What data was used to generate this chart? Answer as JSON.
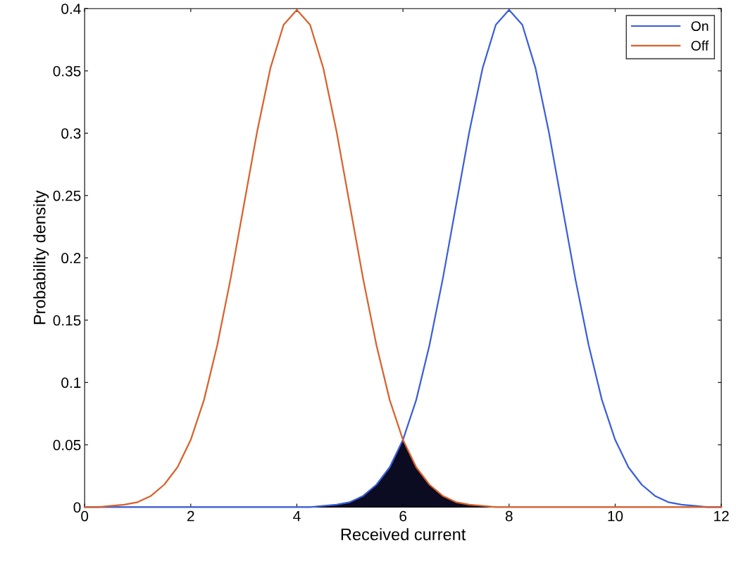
{
  "chart_data": {
    "type": "line",
    "xlabel": "Received current",
    "ylabel": "Probability density",
    "x": [
      0,
      0.25,
      0.5,
      0.75,
      1,
      1.25,
      1.5,
      1.75,
      2,
      2.25,
      2.5,
      2.75,
      3,
      3.25,
      3.5,
      3.75,
      4,
      4.25,
      4.5,
      4.75,
      5,
      5.25,
      5.5,
      5.75,
      6,
      6.25,
      6.5,
      6.75,
      7,
      7.25,
      7.5,
      7.75,
      8,
      8.25,
      8.5,
      8.75,
      9,
      9.25,
      9.5,
      9.75,
      10,
      10.25,
      10.5,
      10.75,
      11,
      11.25,
      11.5,
      11.75,
      12
    ],
    "series": [
      {
        "name": "On",
        "color": "#3a5ed8",
        "values": [
          0,
          0,
          0,
          0,
          0,
          0,
          0,
          0,
          0,
          0,
          0,
          0,
          0,
          0,
          0,
          0,
          0,
          0,
          0.001,
          0.002,
          0.004,
          0.009,
          0.018,
          0.032,
          0.054,
          0.086,
          0.13,
          0.183,
          0.242,
          0.301,
          0.352,
          0.387,
          0.399,
          0.387,
          0.352,
          0.301,
          0.242,
          0.183,
          0.13,
          0.086,
          0.054,
          0.032,
          0.018,
          0.009,
          0.004,
          0.002,
          0.001,
          0,
          0
        ]
      },
      {
        "name": "Off",
        "color": "#d9602a",
        "values": [
          0,
          0,
          0.001,
          0.002,
          0.004,
          0.009,
          0.018,
          0.032,
          0.054,
          0.086,
          0.13,
          0.183,
          0.242,
          0.301,
          0.352,
          0.387,
          0.399,
          0.387,
          0.352,
          0.301,
          0.242,
          0.183,
          0.13,
          0.086,
          0.054,
          0.032,
          0.018,
          0.009,
          0.004,
          0.002,
          0.001,
          0,
          0,
          0,
          0,
          0,
          0,
          0,
          0,
          0,
          0,
          0,
          0,
          0,
          0,
          0,
          0,
          0,
          0
        ]
      },
      {
        "type": "area",
        "color": "#0b0b22",
        "x": [
          4,
          4.25,
          4.5,
          4.75,
          5,
          5.25,
          5.5,
          5.75,
          6,
          6.25,
          6.5,
          6.75,
          7,
          7.25,
          7.5,
          7.75,
          8
        ],
        "values": [
          0,
          0,
          0.001,
          0.002,
          0.004,
          0.009,
          0.018,
          0.032,
          0.054,
          0.032,
          0.018,
          0.009,
          0.004,
          0.002,
          0.001,
          0,
          0
        ]
      }
    ],
    "xlim": [
      0,
      12
    ],
    "xticks": [
      0,
      2,
      4,
      6,
      8,
      10,
      12
    ],
    "ylim": [
      0,
      0.4
    ],
    "yticks": [
      0,
      0.05,
      0.1,
      0.15,
      0.2,
      0.25,
      0.3,
      0.35,
      0.4
    ],
    "grid": false,
    "legend": "top right"
  }
}
